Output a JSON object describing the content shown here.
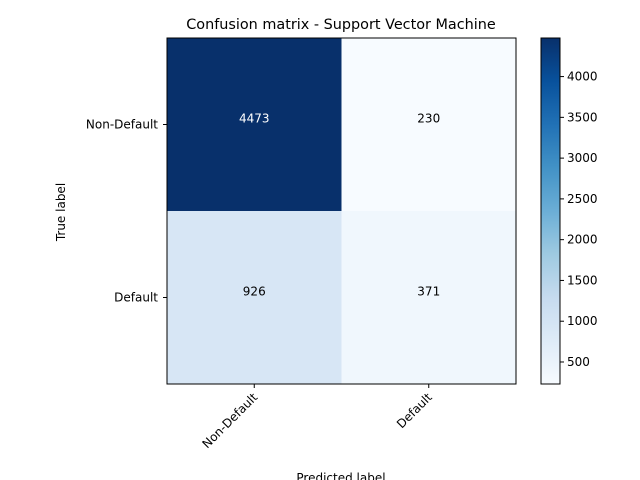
{
  "chart_data": {
    "type": "heatmap",
    "title": "Confusion matrix - Support Vector Machine",
    "xlabel": "Predicted label",
    "ylabel": "True label",
    "x_categories": [
      "Non-Default",
      "Default"
    ],
    "y_categories": [
      "Non-Default",
      "Default"
    ],
    "matrix": [
      [
        4473,
        230
      ],
      [
        926,
        371
      ]
    ],
    "colormap": "Blues",
    "colorbar": {
      "min": 230,
      "max": 4473,
      "ticks": [
        500,
        1000,
        1500,
        2000,
        2500,
        3000,
        3500,
        4000
      ],
      "tick_labels": [
        "500",
        "1000",
        "1500",
        "2000",
        "2500",
        "3000",
        "3500",
        "4000"
      ]
    },
    "grid": false
  }
}
